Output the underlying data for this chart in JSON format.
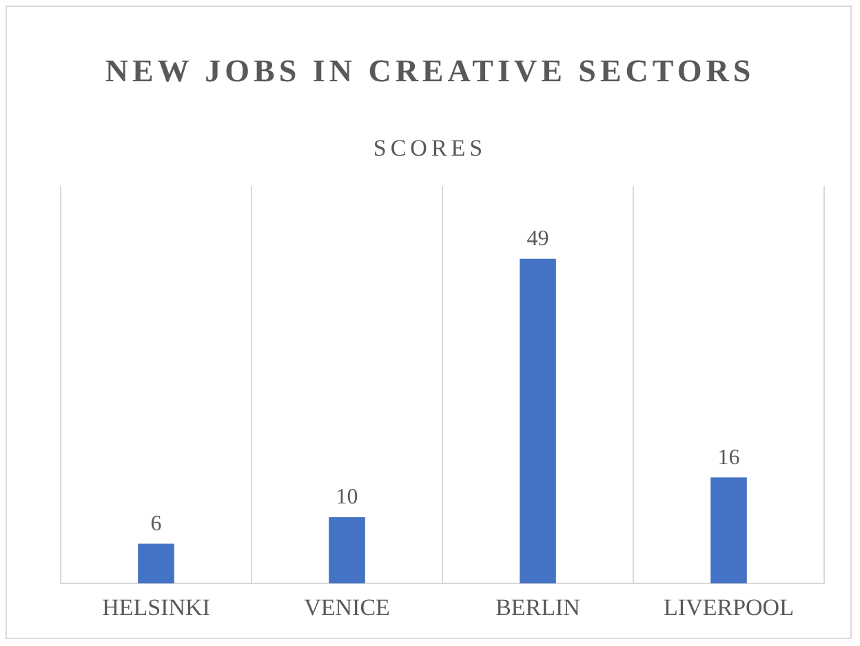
{
  "chart_data": {
    "type": "bar",
    "title": "NEW JOBS IN CREATIVE SECTORS",
    "subtitle": "SCORES",
    "categories": [
      "HELSINKI",
      "VENICE",
      "BERLIN",
      "LIVERPOOL"
    ],
    "values": [
      6,
      10,
      49,
      16
    ],
    "color": "#4472c4",
    "data_labels": true,
    "grid": "x",
    "legend": false
  }
}
